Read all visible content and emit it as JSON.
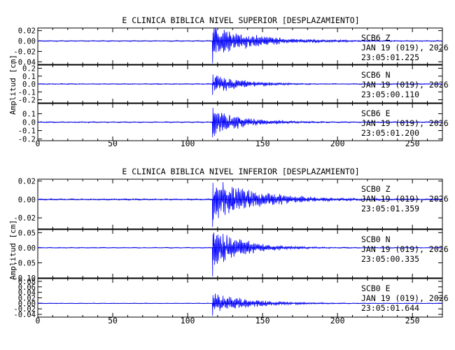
{
  "chart_data": [
    {
      "type": "line",
      "title": "E CLINICA BIBLICA NIVEL SUPERIOR [DESPLAZAMIENTO]",
      "ylabel": "Amplitud [cm]",
      "xlabel": "",
      "xlim": [
        0,
        270
      ],
      "x_ticks": [
        0,
        50,
        100,
        150,
        200,
        250
      ],
      "grid": false,
      "line_color": "#0000ff",
      "panels": [
        {
          "station": "SCB6",
          "component": "Z",
          "date": "JAN 19 (019), 2026",
          "time": "23:05:01.225",
          "ylim": [
            -0.045,
            0.025
          ],
          "y_ticks": [
            0.02,
            0.0,
            -0.02,
            -0.04
          ],
          "y_tick_labels": [
            "0.02",
            "0.00",
            "-0.02",
            "-0.04"
          ],
          "onset_s": 116.5,
          "peak_positive": 0.016,
          "peak_negative": -0.043,
          "decay_s": 30,
          "noise": 0.0006
        },
        {
          "station": "SCB6",
          "component": "N",
          "date": "JAN 19 (019), 2026",
          "time": "23:05:00.110",
          "ylim": [
            -0.24,
            0.24
          ],
          "y_ticks": [
            0.2,
            0.1,
            0.0,
            -0.1,
            -0.2
          ],
          "y_tick_labels": [
            "0.2",
            "0.1",
            "0.0",
            "-0.1",
            "-0.2"
          ],
          "onset_s": 116.5,
          "peak_positive": 0.12,
          "peak_negative": -0.14,
          "decay_s": 20,
          "noise": 0.004
        },
        {
          "station": "SCB6",
          "component": "E",
          "date": "JAN 19 (019), 2026",
          "time": "23:05:01.200",
          "ylim": [
            -0.22,
            0.22
          ],
          "y_ticks": [
            0.1,
            0.0,
            -0.1,
            -0.2
          ],
          "y_tick_labels": [
            "0.1",
            "0.0",
            "-0.1",
            "-0.2"
          ],
          "onset_s": 116.5,
          "peak_positive": 0.17,
          "peak_negative": -0.18,
          "decay_s": 20,
          "noise": 0.004
        }
      ]
    },
    {
      "type": "line",
      "title": "E CLINICA BIBLICA NIVEL INFERIOR [DESPLAZAMIENTO]",
      "ylabel": "Amplitud [cm]",
      "xlabel": "",
      "xlim": [
        0,
        270
      ],
      "x_ticks": [
        0,
        50,
        100,
        150,
        200,
        250
      ],
      "grid": false,
      "line_color": "#0000ff",
      "panels": [
        {
          "station": "SCB0",
          "component": "Z",
          "date": "JAN 19 (019), 2026",
          "time": "23:05:01.359",
          "ylim": [
            -0.032,
            0.022
          ],
          "y_ticks": [
            0.02,
            0.0,
            -0.02
          ],
          "y_tick_labels": [
            "0.02",
            "0.00",
            "-0.02"
          ],
          "onset_s": 116.5,
          "peak_positive": 0.018,
          "peak_negative": -0.03,
          "decay_s": 30,
          "noise": 0.0005
        },
        {
          "station": "SCB0",
          "component": "N",
          "date": "JAN 19 (019), 2026",
          "time": "23:05:00.335",
          "ylim": [
            -0.1,
            0.06
          ],
          "y_ticks": [
            0.05,
            0.0,
            -0.05,
            -0.1
          ],
          "y_tick_labels": [
            "0.05",
            "0.00",
            "-0.05",
            "-0.10"
          ],
          "onset_s": 116.5,
          "peak_positive": 0.045,
          "peak_negative": -0.095,
          "decay_s": 20,
          "noise": 0.001
        },
        {
          "station": "SCB0",
          "component": "E",
          "date": "JAN 19 (019), 2026",
          "time": "23:05:01.644",
          "ylim": [
            -0.05,
            0.09
          ],
          "y_ticks": [
            0.08,
            0.06,
            0.04,
            0.02,
            0.0,
            -0.02,
            -0.04
          ],
          "y_tick_labels": [
            "0.08",
            "0.06",
            "0.04",
            "0.02",
            "0.00",
            "-0.02",
            "-0.04"
          ],
          "onset_s": 116.5,
          "peak_positive": 0.03,
          "peak_negative": -0.045,
          "decay_s": 25,
          "noise": 0.0008
        }
      ]
    }
  ]
}
